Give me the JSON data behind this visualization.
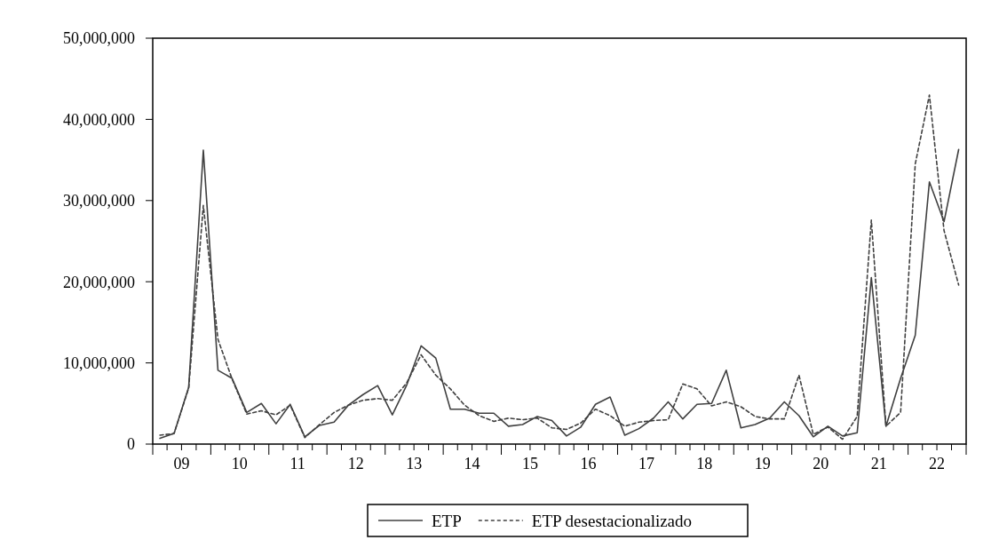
{
  "chart_data": {
    "type": "line",
    "x": [
      "2009-02-15",
      "2009-05-15",
      "2009-08-15",
      "2009-11-15",
      "2010-02-15",
      "2010-05-15",
      "2010-08-15",
      "2010-11-15",
      "2011-02-15",
      "2011-05-15",
      "2011-08-15",
      "2011-11-15",
      "2012-02-15",
      "2012-05-15",
      "2012-08-15",
      "2012-11-15",
      "2013-02-15",
      "2013-05-15",
      "2013-08-15",
      "2013-11-15",
      "2014-02-15",
      "2014-05-15",
      "2014-08-15",
      "2014-11-15",
      "2015-02-15",
      "2015-05-15",
      "2015-08-15",
      "2015-11-15",
      "2016-02-15",
      "2016-05-15",
      "2016-08-15",
      "2016-11-15",
      "2017-02-15",
      "2017-05-15",
      "2017-08-15",
      "2017-11-15",
      "2018-02-15",
      "2018-05-15",
      "2018-08-15",
      "2018-11-15",
      "2019-02-15",
      "2019-05-15",
      "2019-08-15",
      "2019-11-15",
      "2020-02-15",
      "2020-05-15",
      "2020-08-15",
      "2020-11-15",
      "2021-02-15",
      "2021-05-15",
      "2021-08-15",
      "2021-11-15",
      "2022-02-15",
      "2022-05-15",
      "2022-08-15",
      "2022-11-15"
    ],
    "series": [
      {
        "name": "ETP",
        "color": "#404040",
        "line_style": "solid",
        "values": [
          700000,
          1300000,
          7000000,
          36200000,
          9100000,
          8100000,
          3900000,
          5000000,
          2500000,
          4900000,
          900000,
          2300000,
          2700000,
          4800000,
          6100000,
          7200000,
          3600000,
          7200000,
          12100000,
          10600000,
          4300000,
          4300000,
          3800000,
          3800000,
          2200000,
          2400000,
          3400000,
          2900000,
          1000000,
          2100000,
          4900000,
          5800000,
          1100000,
          1900000,
          3200000,
          5200000,
          3100000,
          4900000,
          5000000,
          9100000,
          2000000,
          2400000,
          3200000,
          5200000,
          3500000,
          900000,
          2200000,
          1000000,
          1400000,
          20500000,
          2200000,
          8100000,
          13400000,
          32300000,
          27400000,
          36300000
        ]
      },
      {
        "name": "ETP desestacionalizado",
        "color": "#404040",
        "line_style": "dashed",
        "values": [
          1100000,
          1300000,
          6900000,
          29400000,
          12900000,
          8000000,
          3700000,
          4100000,
          3600000,
          4800000,
          800000,
          2400000,
          3900000,
          4800000,
          5400000,
          5600000,
          5400000,
          7500000,
          11000000,
          8500000,
          6800000,
          4800000,
          3500000,
          2800000,
          3200000,
          3000000,
          3200000,
          2000000,
          1800000,
          2600000,
          4300000,
          3500000,
          2200000,
          2700000,
          2900000,
          3000000,
          7400000,
          6800000,
          4700000,
          5200000,
          4600000,
          3400000,
          3100000,
          3100000,
          8500000,
          1200000,
          2100000,
          600000,
          3400000,
          27600000,
          2200000,
          3900000,
          34500000,
          43000000,
          26300000,
          19600000
        ]
      }
    ],
    "xlim": [
      "2009-01-01",
      "2023-01-01"
    ],
    "xticks": [
      {
        "value": "2009-01-01",
        "label": null
      },
      {
        "value": "2009-04-01",
        "label": null
      },
      {
        "value": "2009-07-01",
        "label": "09"
      },
      {
        "value": "2009-10-01",
        "label": null
      },
      {
        "value": "2010-01-01",
        "label": null
      },
      {
        "value": "2010-04-01",
        "label": null
      },
      {
        "value": "2010-07-01",
        "label": "10"
      },
      {
        "value": "2010-10-01",
        "label": null
      },
      {
        "value": "2011-01-01",
        "label": null
      },
      {
        "value": "2011-04-01",
        "label": null
      },
      {
        "value": "2011-07-01",
        "label": "11"
      },
      {
        "value": "2011-10-01",
        "label": null
      },
      {
        "value": "2012-01-01",
        "label": null
      },
      {
        "value": "2012-04-01",
        "label": null
      },
      {
        "value": "2012-07-01",
        "label": "12"
      },
      {
        "value": "2012-10-01",
        "label": null
      },
      {
        "value": "2013-01-01",
        "label": null
      },
      {
        "value": "2013-04-01",
        "label": null
      },
      {
        "value": "2013-07-01",
        "label": "13"
      },
      {
        "value": "2013-10-01",
        "label": null
      },
      {
        "value": "2014-01-01",
        "label": null
      },
      {
        "value": "2014-04-01",
        "label": null
      },
      {
        "value": "2014-07-01",
        "label": "14"
      },
      {
        "value": "2014-10-01",
        "label": null
      },
      {
        "value": "2015-01-01",
        "label": null
      },
      {
        "value": "2015-04-01",
        "label": null
      },
      {
        "value": "2015-07-01",
        "label": "15"
      },
      {
        "value": "2015-10-01",
        "label": null
      },
      {
        "value": "2016-01-01",
        "label": null
      },
      {
        "value": "2016-04-01",
        "label": null
      },
      {
        "value": "2016-07-01",
        "label": "16"
      },
      {
        "value": "2016-10-01",
        "label": null
      },
      {
        "value": "2017-01-01",
        "label": null
      },
      {
        "value": "2017-04-01",
        "label": null
      },
      {
        "value": "2017-07-01",
        "label": "17"
      },
      {
        "value": "2017-10-01",
        "label": null
      },
      {
        "value": "2018-01-01",
        "label": null
      },
      {
        "value": "2018-04-01",
        "label": null
      },
      {
        "value": "2018-07-01",
        "label": "18"
      },
      {
        "value": "2018-10-01",
        "label": null
      },
      {
        "value": "2019-01-01",
        "label": null
      },
      {
        "value": "2019-04-01",
        "label": null
      },
      {
        "value": "2019-07-01",
        "label": "19"
      },
      {
        "value": "2019-10-01",
        "label": null
      },
      {
        "value": "2020-01-01",
        "label": null
      },
      {
        "value": "2020-04-01",
        "label": null
      },
      {
        "value": "2020-07-01",
        "label": "20"
      },
      {
        "value": "2020-10-01",
        "label": null
      },
      {
        "value": "2021-01-01",
        "label": null
      },
      {
        "value": "2021-04-01",
        "label": null
      },
      {
        "value": "2021-07-01",
        "label": "21"
      },
      {
        "value": "2021-10-01",
        "label": null
      },
      {
        "value": "2022-01-01",
        "label": null
      },
      {
        "value": "2022-04-01",
        "label": null
      },
      {
        "value": "2022-07-01",
        "label": "22"
      },
      {
        "value": "2022-10-01",
        "label": null
      },
      {
        "value": "2023-01-01",
        "label": null
      }
    ],
    "ylim": [
      0,
      50000000
    ],
    "yticks": [
      {
        "value": 0,
        "label": "0"
      },
      {
        "value": 10000000,
        "label": "10,000,000"
      },
      {
        "value": 20000000,
        "label": "20,000,000"
      },
      {
        "value": 30000000,
        "label": "30,000,000"
      },
      {
        "value": 40000000,
        "label": "40,000,000"
      },
      {
        "value": 50000000,
        "label": "50,000,000"
      }
    ],
    "grid": false,
    "legend": "bottom",
    "marker": "none"
  }
}
